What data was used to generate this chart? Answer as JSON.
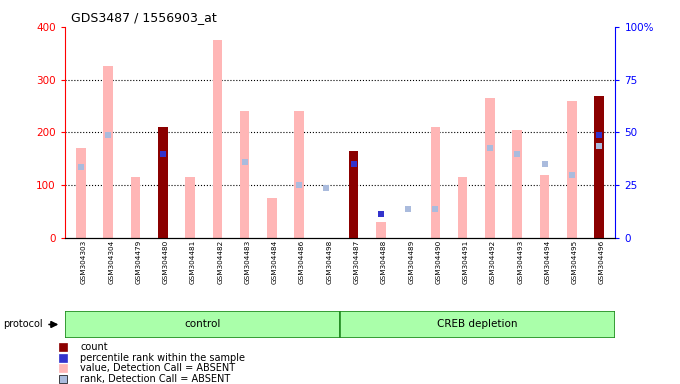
{
  "title": "GDS3487 / 1556903_at",
  "samples": [
    "GSM304303",
    "GSM304304",
    "GSM304479",
    "GSM304480",
    "GSM304481",
    "GSM304482",
    "GSM304483",
    "GSM304484",
    "GSM304486",
    "GSM304498",
    "GSM304487",
    "GSM304488",
    "GSM304489",
    "GSM304490",
    "GSM304491",
    "GSM304492",
    "GSM304493",
    "GSM304494",
    "GSM304495",
    "GSM304496"
  ],
  "count_values": [
    0,
    0,
    0,
    210,
    0,
    0,
    0,
    0,
    0,
    0,
    165,
    0,
    0,
    0,
    0,
    0,
    0,
    0,
    0,
    270
  ],
  "value_absent": [
    170,
    325,
    115,
    0,
    115,
    375,
    240,
    75,
    240,
    0,
    30,
    30,
    0,
    210,
    115,
    265,
    205,
    120,
    260,
    0
  ],
  "rank_absent": [
    135,
    195,
    0,
    160,
    0,
    0,
    145,
    0,
    100,
    95,
    0,
    0,
    55,
    55,
    0,
    170,
    160,
    140,
    120,
    175
  ],
  "percentile_rank": [
    0,
    0,
    0,
    160,
    0,
    0,
    0,
    0,
    0,
    0,
    140,
    45,
    0,
    0,
    0,
    0,
    0,
    0,
    0,
    195
  ],
  "groups": [
    {
      "label": "control",
      "start": 0,
      "end": 10
    },
    {
      "label": "CREB depletion",
      "start": 10,
      "end": 20
    }
  ],
  "ylim_left": [
    0,
    400
  ],
  "ylim_right": [
    0,
    100
  ],
  "yticks_left": [
    0,
    100,
    200,
    300,
    400
  ],
  "yticks_right": [
    0,
    25,
    50,
    75,
    100
  ],
  "color_count": "#8B0000",
  "color_rank": "#3333CC",
  "color_value_absent": "#FFB6B6",
  "color_rank_absent": "#AABBDD",
  "bg_color": "#D0D0D0",
  "group_color_light": "#AAFFAA",
  "group_color_dark": "#44CC44",
  "group_border_color": "#228B22"
}
